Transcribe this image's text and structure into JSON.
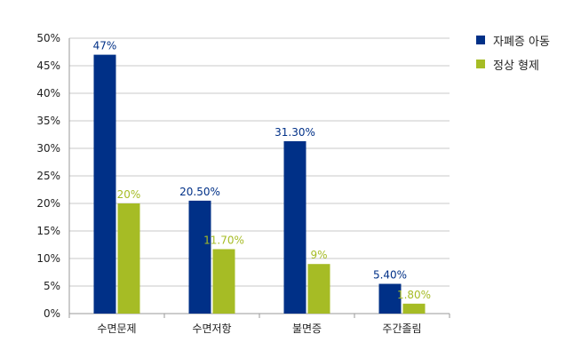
{
  "chart_data": {
    "type": "bar",
    "categories": [
      "수면문제",
      "수면저항",
      "불면증",
      "주간졸림"
    ],
    "series": [
      {
        "name": "자폐증 아동",
        "color": "#003087",
        "values": [
          47,
          20.5,
          31.3,
          5.4
        ],
        "labels": [
          "47%",
          "20.50%",
          "31.30%",
          "5.40%"
        ]
      },
      {
        "name": "정상 형제",
        "color": "#a6bc25",
        "values": [
          20,
          11.7,
          9,
          1.8
        ],
        "labels": [
          "20%",
          "11.70%",
          "9%",
          "1.80%"
        ]
      }
    ],
    "yticks": [
      "0%",
      "5%",
      "10%",
      "15%",
      "20%",
      "25%",
      "30%",
      "35%",
      "40%",
      "45%",
      "50%"
    ],
    "ylim": [
      0,
      50
    ],
    "grid": true,
    "legend": "right"
  }
}
